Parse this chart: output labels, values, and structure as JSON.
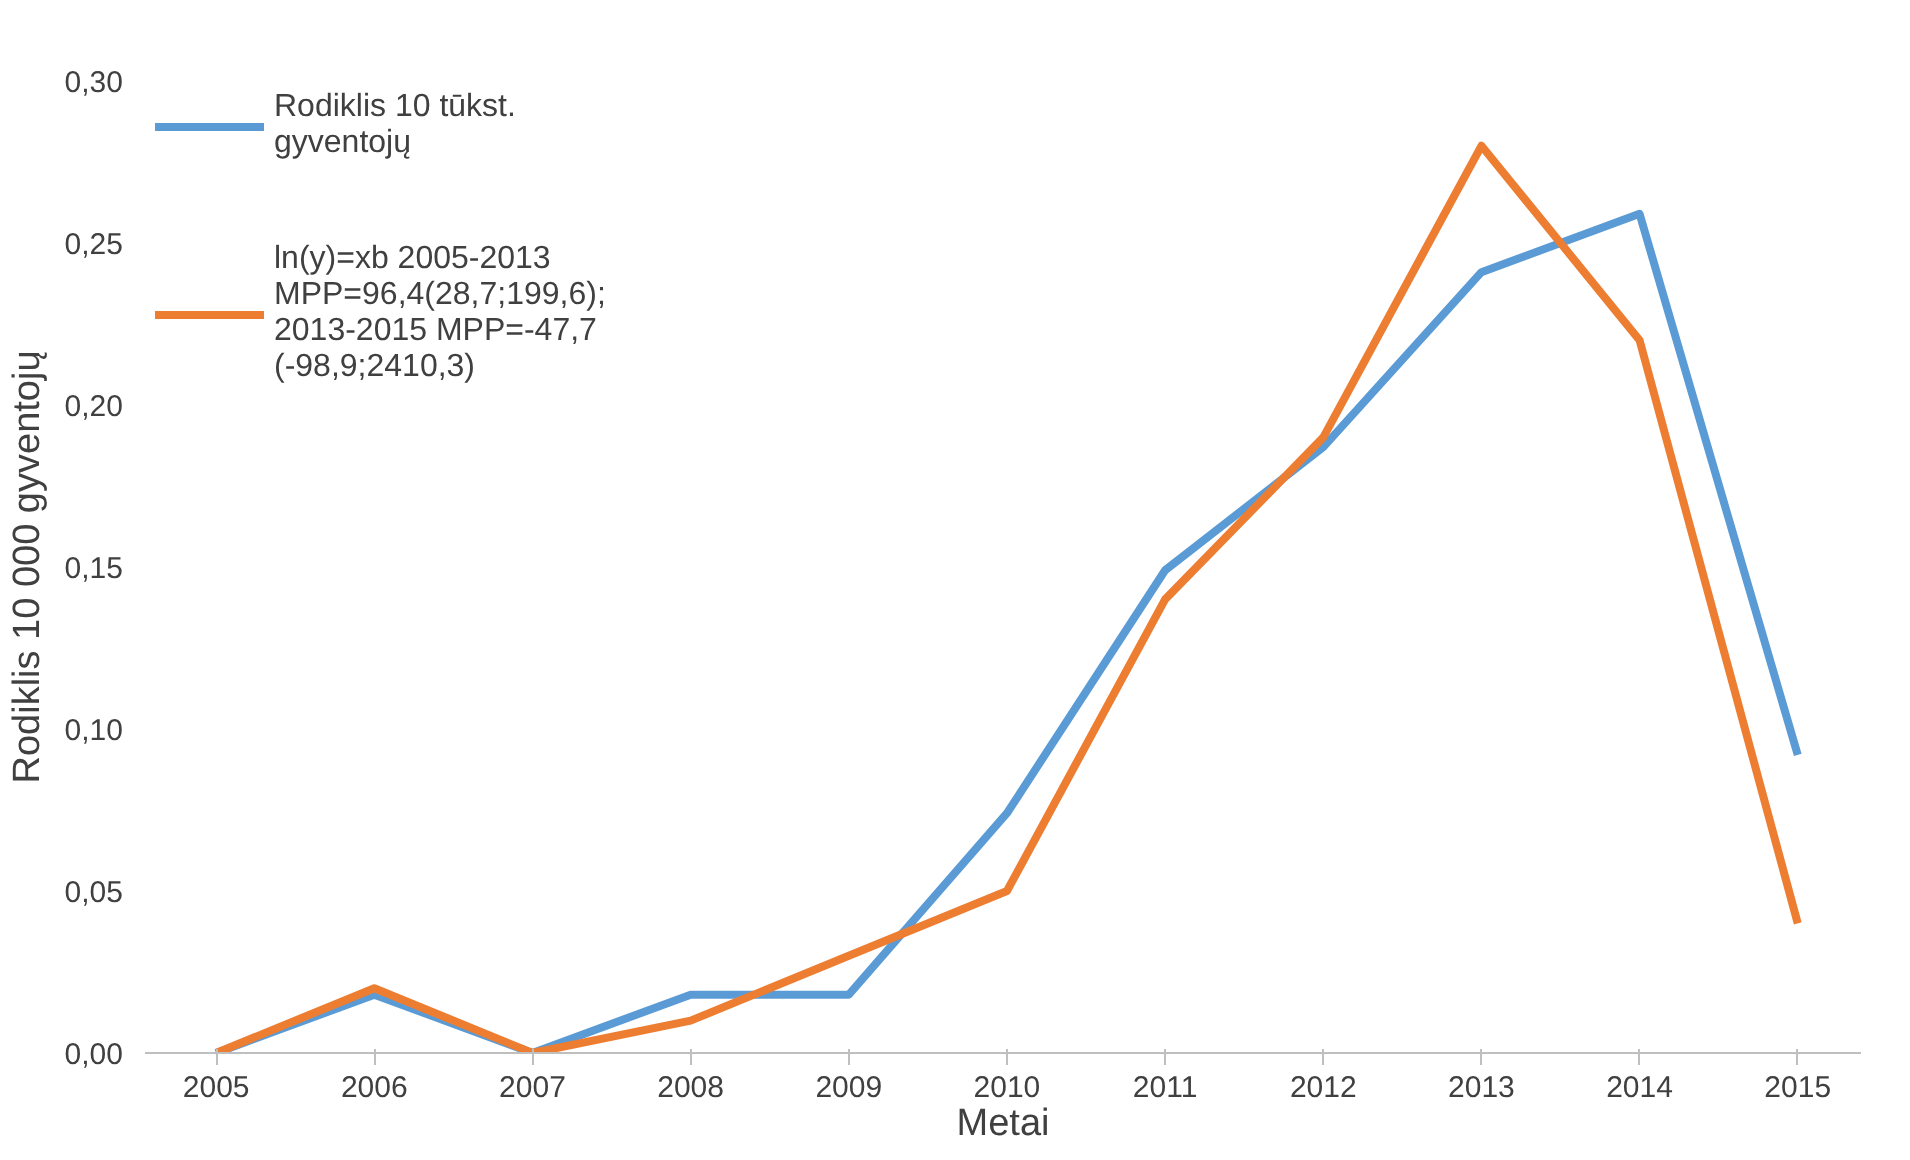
{
  "chart_data": {
    "type": "line",
    "xlabel": "Metai",
    "ylabel": "Rodiklis 10 000 gyventojų",
    "categories": [
      "2005",
      "2006",
      "2007",
      "2008",
      "2009",
      "2010",
      "2011",
      "2012",
      "2013",
      "2014",
      "2015"
    ],
    "series": [
      {
        "name": "Rodiklis 10 tūkst. gyventojų",
        "color": "#5b9bd5",
        "values": [
          0,
          0.018,
          0,
          0.018,
          0.018,
          0.074,
          0.149,
          0.187,
          0.241,
          0.259,
          0.092
        ]
      },
      {
        "name": "ln(y)=xb 2005-2013 MPP=96,4(28,7;199,6); 2013-2015 MPP=-47,7 (-98,9;2410,3)",
        "color": "#ed7d31",
        "values": [
          0,
          0.02,
          0,
          0.01,
          0.03,
          0.05,
          0.14,
          0.19,
          0.28,
          0.22,
          0.04
        ]
      }
    ],
    "ylim": [
      0,
      0.3
    ],
    "yticks": [
      {
        "value": 0,
        "label": "0,00"
      },
      {
        "value": 0.05,
        "label": "0,05"
      },
      {
        "value": 0.1,
        "label": "0,10"
      },
      {
        "value": 0.15,
        "label": "0,15"
      },
      {
        "value": 0.2,
        "label": "0,20"
      },
      {
        "value": 0.25,
        "label": "0,25"
      },
      {
        "value": 0.3,
        "label": "0,30"
      }
    ],
    "grid": false,
    "legend": "top left",
    "marker": "none",
    "line_style": "solid"
  }
}
